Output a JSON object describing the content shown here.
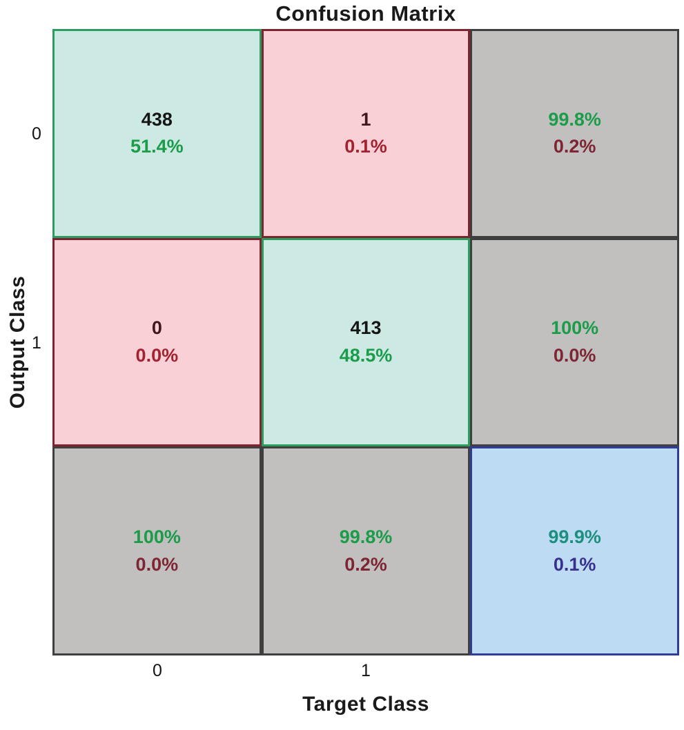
{
  "chart_data": {
    "type": "heatmap",
    "title": "Confusion Matrix",
    "xlabel": "Target Class",
    "ylabel": "Output Class",
    "x_ticks": [
      "0",
      "1"
    ],
    "y_ticks": [
      "0",
      "1"
    ],
    "classes": [
      "0",
      "1"
    ],
    "counts": [
      [
        438,
        1
      ],
      [
        0,
        413
      ]
    ],
    "percent_of_total": [
      [
        "51.4%",
        "0.1%"
      ],
      [
        "0.0%",
        "48.5%"
      ]
    ],
    "row_summary": [
      {
        "good": "99.8%",
        "bad": "0.2%"
      },
      {
        "good": "100%",
        "bad": "0.0%"
      }
    ],
    "col_summary": [
      {
        "good": "100%",
        "bad": "0.0%"
      },
      {
        "good": "99.8%",
        "bad": "0.2%"
      }
    ],
    "overall": {
      "good": "99.9%",
      "bad": "0.1%"
    },
    "cells": [
      [
        {
          "line1": "438",
          "line2": "51.4%"
        },
        {
          "line1": "1",
          "line2": "0.1%"
        },
        {
          "line1": "99.8%",
          "line2": "0.2%"
        }
      ],
      [
        {
          "line1": "0",
          "line2": "0.0%"
        },
        {
          "line1": "413",
          "line2": "48.5%"
        },
        {
          "line1": "100%",
          "line2": "0.0%"
        }
      ],
      [
        {
          "line1": "100%",
          "line2": "0.0%"
        },
        {
          "line1": "99.8%",
          "line2": "0.2%"
        },
        {
          "line1": "99.9%",
          "line2": "0.1%"
        }
      ]
    ]
  },
  "colors": {
    "background": "#ffffff",
    "title_text": "#1a1a1a",
    "correct_bg": "#cde9e3",
    "correct_border": "#2a9c5e",
    "incorrect_bg": "#f8d0d5",
    "incorrect_border": "#7d2430",
    "summary_bg": "#c1c0bf",
    "summary_border": "#3f3f3f",
    "total_bg": "#bddcf4",
    "total_border": "#2d3d98",
    "count_text": "#151515",
    "zero_count_text": "#42171b",
    "good_text": "#1a9c49",
    "bad_text": "#a32130",
    "summary_bad_text": "#7e2533",
    "total_good_text": "#1e8f7e",
    "total_bad_text": "#39308e"
  }
}
